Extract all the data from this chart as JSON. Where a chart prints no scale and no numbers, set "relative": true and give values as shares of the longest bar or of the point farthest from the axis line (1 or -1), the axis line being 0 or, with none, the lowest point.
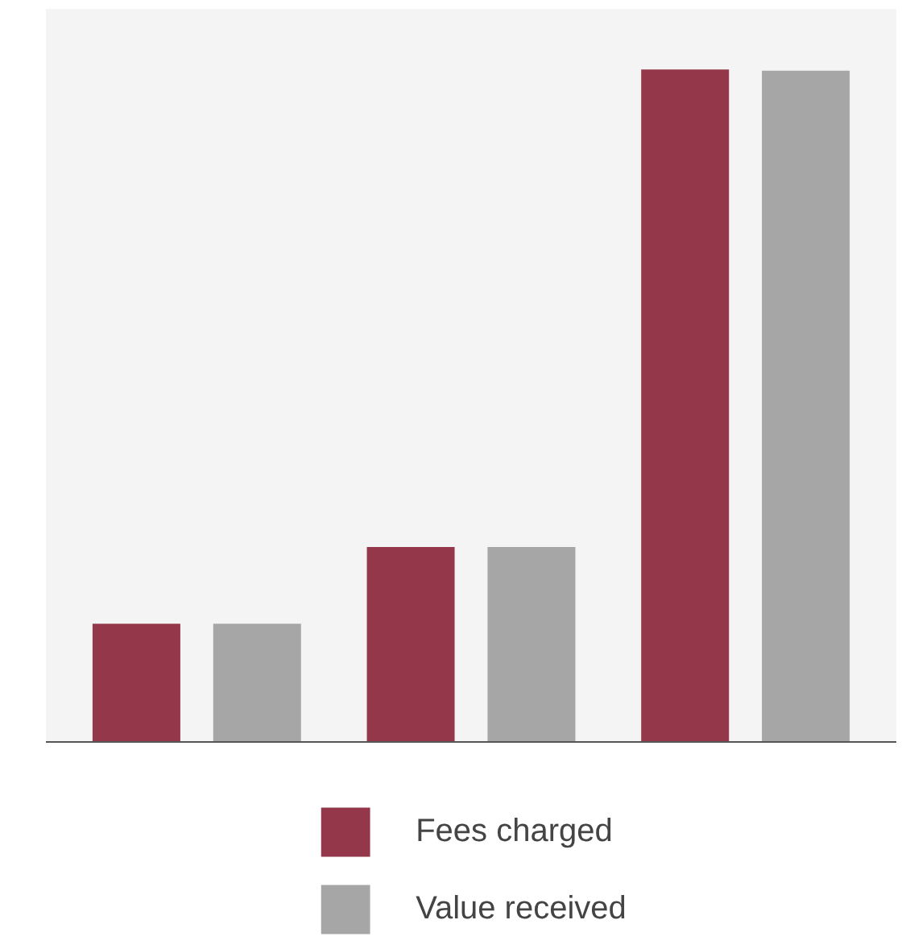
{
  "chart_data": {
    "type": "bar",
    "relative": true,
    "categories": [
      null,
      null,
      null
    ],
    "series": [
      {
        "name": "Fees charged",
        "color": "#94374a",
        "values": [
          0.176,
          0.29,
          1
        ]
      },
      {
        "name": "Value received",
        "color": "#a6a6a6",
        "values": [
          0.176,
          0.29,
          0.998
        ]
      }
    ],
    "legend": "bottom",
    "grid": false
  }
}
